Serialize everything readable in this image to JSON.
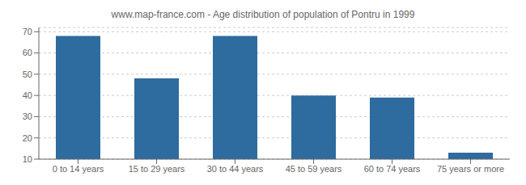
{
  "chart_data": {
    "type": "bar",
    "title": "www.map-france.com - Age distribution of population of Pontru in 1999",
    "categories": [
      "0 to 14 years",
      "15 to 29 years",
      "30 to 44 years",
      "45 to 59 years",
      "60 to 74 years",
      "75 years or more"
    ],
    "values": [
      68,
      48,
      68,
      40,
      39,
      13
    ],
    "color": "#2e6b9e",
    "ylim": [
      10,
      72
    ],
    "yticks": [
      10,
      20,
      30,
      40,
      50,
      60,
      70
    ],
    "grid": true
  }
}
